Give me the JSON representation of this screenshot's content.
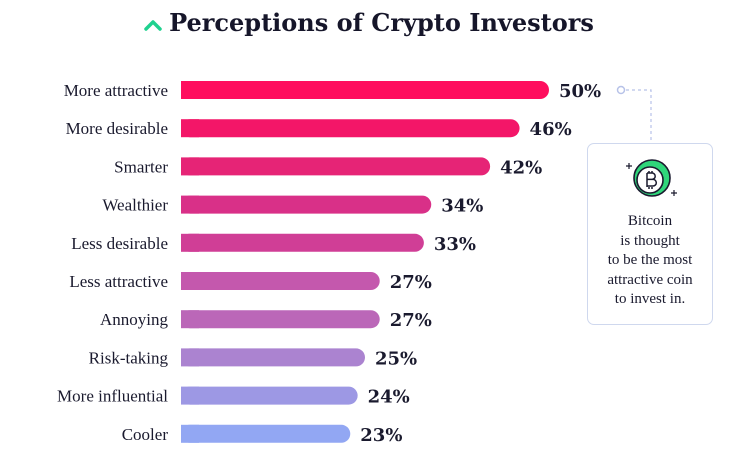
{
  "chart_data": {
    "type": "bar",
    "orientation": "horizontal",
    "title": "Perceptions of Crypto Investors",
    "categories": [
      "More attractive",
      "More desirable",
      "Smarter",
      "Wealthier",
      "Less desirable",
      "Less attractive",
      "Annoying",
      "Risk-taking",
      "More influential",
      "Cooler"
    ],
    "values": [
      50,
      46,
      42,
      34,
      33,
      27,
      27,
      25,
      24,
      23
    ],
    "value_labels": [
      "50%",
      "46%",
      "42%",
      "34%",
      "33%",
      "27%",
      "27%",
      "25%",
      "24%",
      "23%"
    ],
    "unit": "%",
    "xlim": [
      0,
      50
    ],
    "colors": [
      "#ff0e5e",
      "#f31668",
      "#e62476",
      "#d93088",
      "#d03e96",
      "#c458ad",
      "#bb67b8",
      "#ab83d0",
      "#9d98e4",
      "#92a7f3"
    ],
    "xlabel": "",
    "ylabel": "",
    "grid": false,
    "legend": "none"
  },
  "title_icon": "chevron-up-icon",
  "accent_color": "#1fd18f",
  "callout": {
    "icon": "bitcoin-coin-icon",
    "lines": [
      "Bitcoin",
      "is thought",
      "to be the most",
      "attractive coin",
      "to invest in."
    ],
    "border_color": "#cfd8ee"
  }
}
